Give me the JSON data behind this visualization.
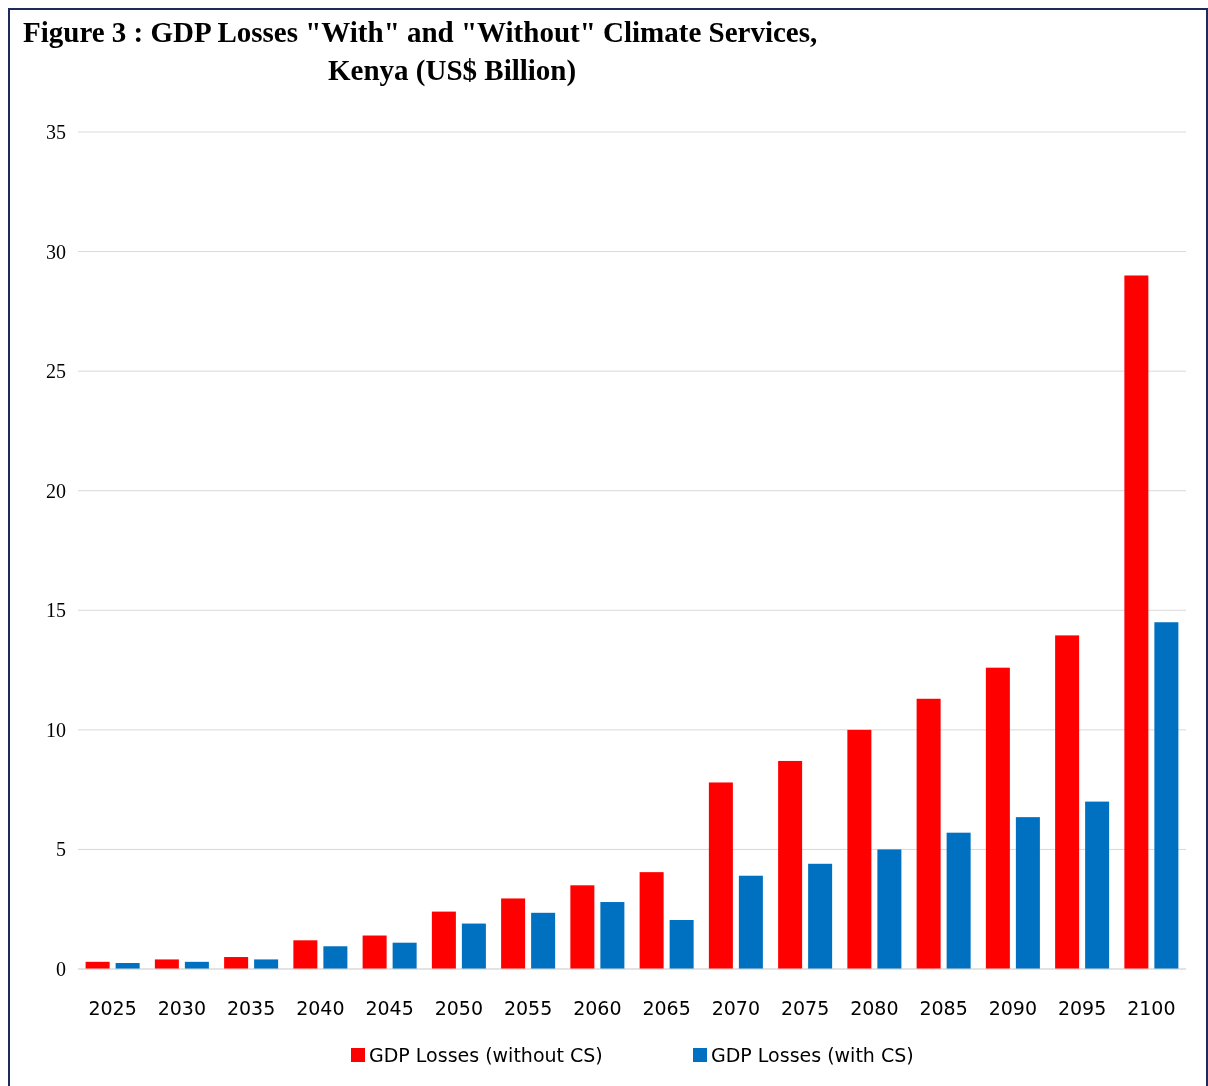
{
  "chart_data": {
    "type": "bar",
    "title": "Figure 3 :  GDP Losses \"With\" and \"Without\" Climate Services,\nKenya (US$ Billion)",
    "categories": [
      "2025",
      "2030",
      "2035",
      "2040",
      "2045",
      "2050",
      "2055",
      "2060",
      "2065",
      "2070",
      "2075",
      "2080",
      "2085",
      "2090",
      "2095",
      "2100"
    ],
    "series": [
      {
        "name": "GDP Losses (without CS)",
        "color": "#ff0000",
        "values": [
          0.3,
          0.4,
          0.5,
          1.2,
          1.4,
          2.4,
          2.95,
          3.5,
          4.05,
          7.8,
          8.7,
          10.0,
          11.3,
          12.6,
          13.95,
          29.0
        ]
      },
      {
        "name": "GDP Losses (with CS)",
        "color": "#0070c0",
        "values": [
          0.25,
          0.3,
          0.4,
          0.95,
          1.1,
          1.9,
          2.35,
          2.8,
          2.05,
          3.9,
          4.4,
          5.0,
          5.7,
          6.35,
          7.0,
          14.5
        ]
      }
    ],
    "ylim": [
      0,
      35
    ],
    "yticks": [
      0,
      5,
      10,
      15,
      20,
      25,
      30,
      35
    ],
    "grid": "y",
    "legend": "bottom"
  }
}
